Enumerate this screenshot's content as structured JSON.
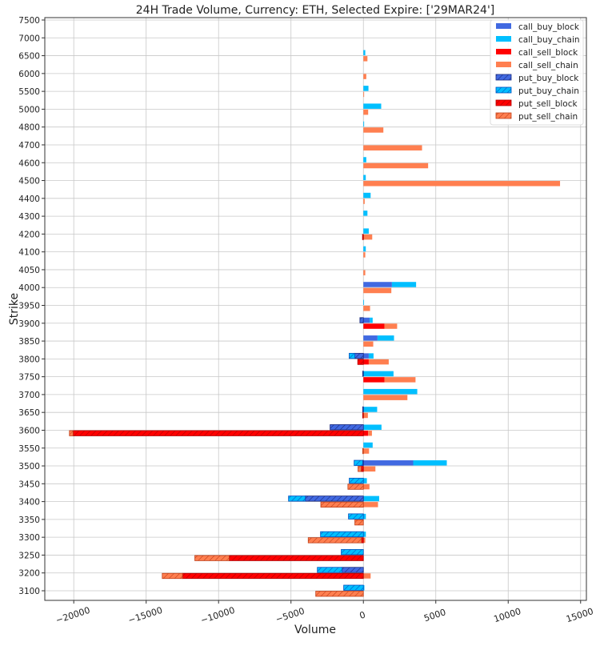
{
  "chart_data": {
    "type": "bar",
    "orientation": "horizontal",
    "title": "24H Trade Volume, Currency: ETH, Selected Expire: ['29MAR24']",
    "xlabel": "Volume",
    "ylabel": "Strike",
    "xlim": [
      -22000,
      15400
    ],
    "xticks": [
      -20000,
      -15000,
      -10000,
      -5000,
      0,
      5000,
      10000,
      15000
    ],
    "xtick_labels": [
      "−20000",
      "−15000",
      "−10000",
      "−5000",
      "0",
      "5000",
      "10000",
      "15000"
    ],
    "grid": true,
    "legend_position": "top-right",
    "categories": [
      "3100",
      "3200",
      "3250",
      "3300",
      "3350",
      "3400",
      "3450",
      "3500",
      "3550",
      "3600",
      "3650",
      "3700",
      "3750",
      "3800",
      "3850",
      "3900",
      "3950",
      "4000",
      "4050",
      "4100",
      "4200",
      "4300",
      "4400",
      "4500",
      "4600",
      "4700",
      "4800",
      "5000",
      "5500",
      "6000",
      "6500",
      "7000",
      "7500"
    ],
    "series": [
      {
        "name": "call_buy_block",
        "group": "buy",
        "color": "#4169e1",
        "hatch": false,
        "values": [
          0,
          0,
          0,
          0,
          0,
          0,
          0,
          3440,
          0,
          0,
          0,
          0,
          0,
          370,
          975,
          440,
          0,
          1970,
          0,
          0,
          0,
          0,
          0,
          0,
          0,
          0,
          0,
          0,
          0,
          0,
          0,
          0,
          0
        ]
      },
      {
        "name": "call_buy_chain",
        "group": "buy",
        "color": "#00bfff",
        "hatch": false,
        "values": [
          70,
          0,
          0,
          170,
          170,
          1090,
          240,
          2320,
          640,
          1250,
          950,
          3720,
          2080,
          330,
          1140,
          200,
          40,
          1670,
          0,
          165,
          370,
          280,
          500,
          165,
          200,
          0,
          50,
          1230,
          350,
          0,
          130,
          0,
          0
        ]
      },
      {
        "name": "call_sell_block",
        "group": "sell",
        "color": "#ff0000",
        "hatch": false,
        "values": [
          0,
          0,
          0,
          0,
          0,
          0,
          0,
          0,
          0,
          330,
          0,
          0,
          1450,
          370,
          0,
          1450,
          0,
          0,
          0,
          0,
          0,
          0,
          0,
          0,
          0,
          0,
          0,
          0,
          0,
          0,
          0,
          0,
          0
        ]
      },
      {
        "name": "call_sell_chain",
        "group": "sell",
        "color": "#ff7f50",
        "hatch": false,
        "values": [
          0,
          500,
          0,
          130,
          0,
          1010,
          420,
          830,
          390,
          260,
          310,
          3040,
          2150,
          1380,
          680,
          880,
          460,
          1930,
          130,
          130,
          610,
          0,
          90,
          13580,
          4470,
          4050,
          1380,
          330,
          50,
          200,
          280,
          0,
          0
        ]
      },
      {
        "name": "put_buy_block",
        "group": "buy",
        "color": "#4169e1",
        "hatch": true,
        "values": [
          0,
          -1470,
          0,
          0,
          0,
          -4010,
          0,
          -50,
          0,
          -2300,
          -50,
          0,
          -50,
          -590,
          0,
          -240,
          0,
          0,
          0,
          0,
          0,
          0,
          0,
          0,
          0,
          0,
          0,
          0,
          0,
          0,
          0,
          0,
          0
        ]
      },
      {
        "name": "put_buy_chain",
        "group": "buy",
        "color": "#00bfff",
        "hatch": true,
        "values": [
          -1360,
          -1710,
          -1530,
          -2960,
          -1030,
          -1160,
          -975,
          -590,
          0,
          0,
          0,
          0,
          0,
          -390,
          0,
          0,
          0,
          0,
          0,
          0,
          0,
          0,
          0,
          0,
          0,
          0,
          0,
          0,
          0,
          0,
          0,
          0,
          0
        ]
      },
      {
        "name": "put_sell_block",
        "group": "sell",
        "color": "#ff0000",
        "hatch": true,
        "values": [
          0,
          -12490,
          -9270,
          -130,
          0,
          0,
          0,
          -150,
          0,
          -20050,
          -50,
          0,
          0,
          -390,
          0,
          0,
          0,
          0,
          0,
          0,
          -60,
          0,
          0,
          0,
          0,
          0,
          0,
          0,
          0,
          0,
          0,
          0,
          0
        ]
      },
      {
        "name": "put_sell_chain",
        "group": "sell",
        "color": "#ff7f50",
        "hatch": true,
        "values": [
          -3290,
          -1400,
          -2370,
          -3680,
          -590,
          -2940,
          -1070,
          -220,
          -50,
          -250,
          0,
          0,
          0,
          0,
          0,
          0,
          0,
          0,
          0,
          0,
          0,
          0,
          0,
          0,
          0,
          0,
          0,
          0,
          0,
          0,
          0,
          0,
          0
        ]
      }
    ]
  }
}
